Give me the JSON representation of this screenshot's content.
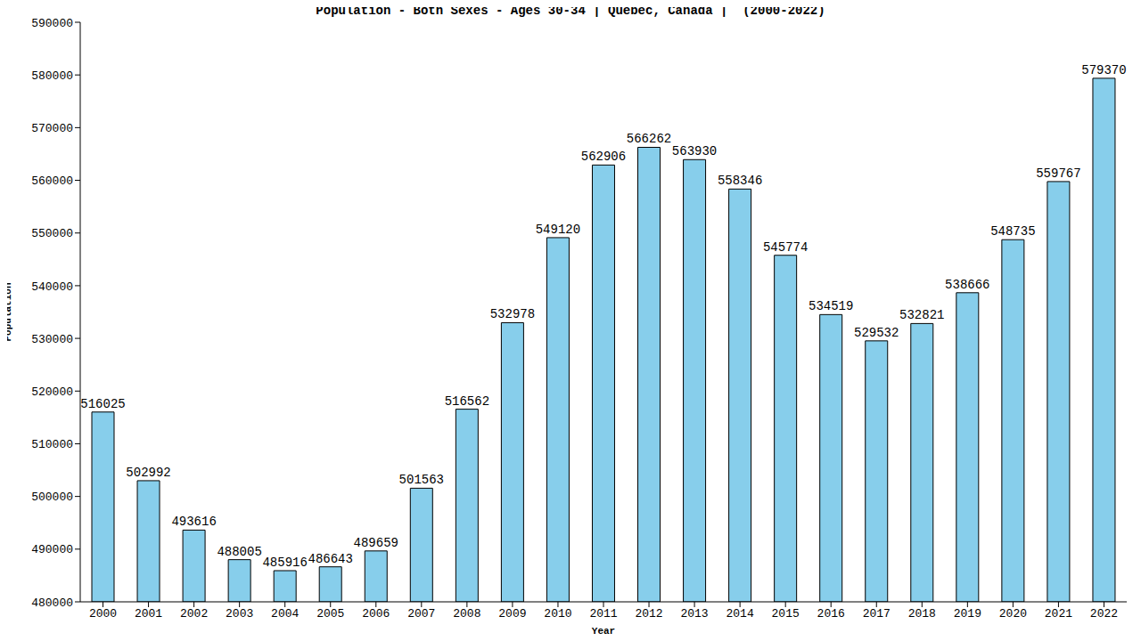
{
  "chart_data": {
    "type": "bar",
    "title": "Population - Both Sexes - Ages 30-34 | Quebec, Canada |  (2000-2022)",
    "x_label": "Year",
    "y_label": "Population",
    "categories": [
      "2000",
      "2001",
      "2002",
      "2003",
      "2004",
      "2005",
      "2006",
      "2007",
      "2008",
      "2009",
      "2010",
      "2011",
      "2012",
      "2013",
      "2014",
      "2015",
      "2016",
      "2017",
      "2018",
      "2019",
      "2020",
      "2021",
      "2022"
    ],
    "values": [
      516025,
      502992,
      493616,
      488005,
      485916,
      486643,
      489659,
      501563,
      516562,
      532978,
      549120,
      562906,
      566262,
      563930,
      558346,
      545774,
      534519,
      529532,
      532821,
      538666,
      548735,
      559767,
      579370
    ],
    "color": "#87ceeb",
    "ylim": [
      480000,
      590000
    ],
    "yticks": [
      480000,
      490000,
      500000,
      510000,
      520000,
      530000,
      540000,
      550000,
      560000,
      570000,
      580000,
      590000
    ],
    "grid": false,
    "data_labels": true
  }
}
